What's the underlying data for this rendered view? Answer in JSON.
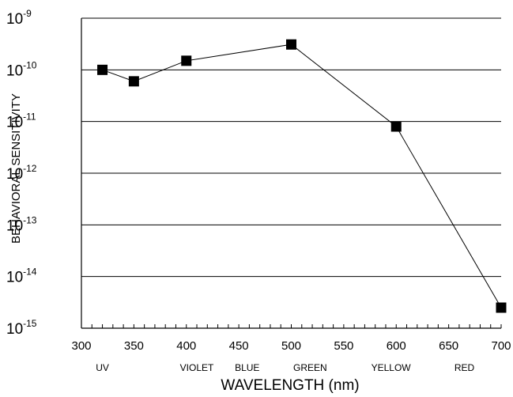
{
  "chart_data": {
    "type": "line",
    "title": "",
    "xlabel": "WAVELENGTH (nm)",
    "ylabel": "BEHAVIORAL SENSITIVITY",
    "x_ticks": [
      "300",
      "350",
      "400",
      "450",
      "500",
      "550",
      "600",
      "650",
      "700"
    ],
    "xlim": [
      300,
      700
    ],
    "y_scale": "log",
    "ylim": [
      1e-15,
      1e-09
    ],
    "y_ticks": [
      {
        "base": "10",
        "exp": "-15"
      },
      {
        "base": "10",
        "exp": "-14"
      },
      {
        "base": "10",
        "exp": "-13"
      },
      {
        "base": "10",
        "exp": "-12"
      },
      {
        "base": "10",
        "exp": "-11"
      },
      {
        "base": "10",
        "exp": "-10"
      },
      {
        "base": "10",
        "exp": "-9"
      }
    ],
    "color_bands": [
      {
        "label": "UV",
        "x": 320
      },
      {
        "label": "VIOLET",
        "x": 410
      },
      {
        "label": "BLUE",
        "x": 458
      },
      {
        "label": "GREEN",
        "x": 518
      },
      {
        "label": "YELLOW",
        "x": 595
      },
      {
        "label": "RED",
        "x": 665
      }
    ],
    "grid": "horizontal",
    "marker": "square",
    "line_color": "#000000",
    "x": [
      320,
      350,
      400,
      500,
      600,
      700
    ],
    "y": [
      1e-10,
      6e-11,
      1.5e-10,
      3.1e-10,
      8e-12,
      2.5e-15
    ]
  }
}
